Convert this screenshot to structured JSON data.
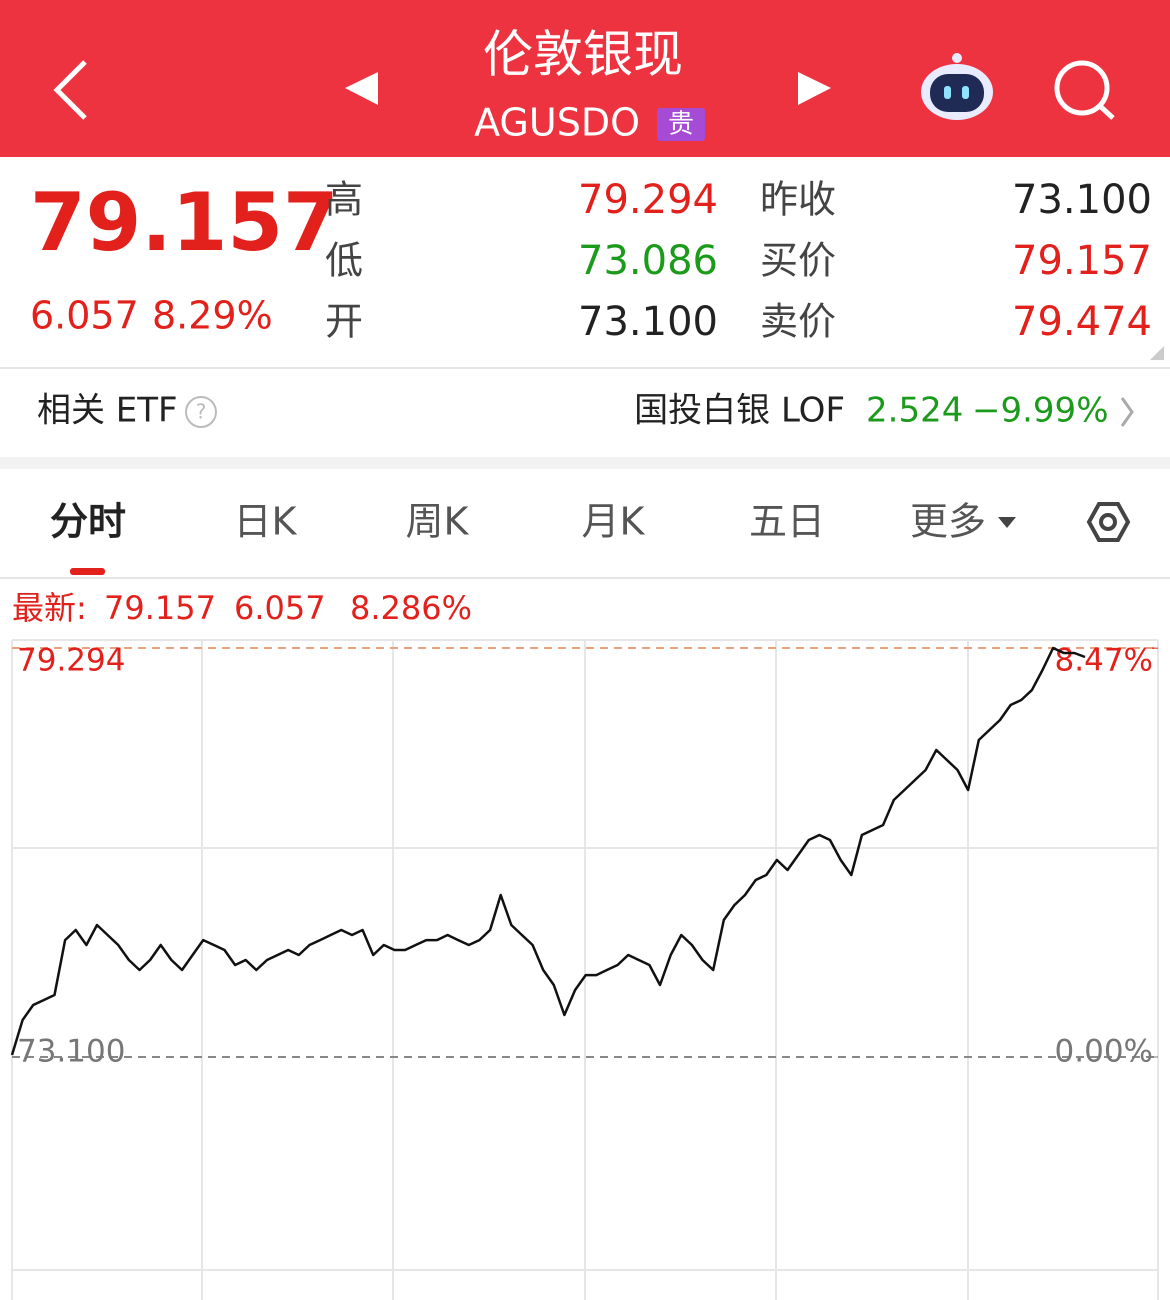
{
  "header": {
    "title": "伦敦银现",
    "code": "AGUSDO",
    "badge": "贵"
  },
  "quote": {
    "price": "79.157",
    "change": "6.057",
    "change_pct": "8.29%",
    "rows": [
      [
        {
          "label": "高",
          "value": "79.294"
        },
        {
          "label": "昨收",
          "value": "73.100"
        }
      ],
      [
        {
          "label": "低",
          "value": "73.086"
        },
        {
          "label": "买价",
          "value": "79.157"
        }
      ],
      [
        {
          "label": "开",
          "value": "73.100"
        },
        {
          "label": "卖价",
          "value": "79.474"
        }
      ]
    ]
  },
  "etf": {
    "label": "相关 ETF",
    "name": "国投白银 LOF",
    "price": "2.524",
    "change": "−9.99%"
  },
  "tabs": [
    "分时",
    "日K",
    "周K",
    "月K",
    "五日",
    "更多"
  ],
  "chart_info": {
    "label": "最新:",
    "price": "79.157",
    "change": "6.057",
    "change_pct": "8.286%"
  },
  "chart_data": {
    "type": "line",
    "color": "#111111",
    "ylim": [
      69.42,
      79.415
    ],
    "yticks": [
      {
        "value": 73.1,
        "label": "73.100"
      },
      79.294
    ],
    "y2lim": [
      -5.034,
      8.639
    ],
    "y2ticks": [
      {
        "value": 0,
        "label": "0.00%"
      },
      {
        "value": 8.47,
        "label": "8.47%"
      }
    ],
    "values": [
      73.13,
      73.66,
      73.887,
      73.963,
      74.039,
      74.871,
      75.023,
      74.796,
      75.099,
      74.947,
      74.796,
      74.569,
      74.417,
      74.569,
      74.796,
      74.569,
      74.417,
      74.644,
      74.871,
      74.796,
      74.72,
      74.493,
      74.569,
      74.417,
      74.569,
      74.644,
      74.72,
      74.644,
      74.796,
      74.871,
      74.947,
      75.023,
      74.947,
      75.023,
      74.644,
      74.796,
      74.72,
      74.72,
      74.796,
      74.871,
      74.871,
      74.947,
      74.871,
      74.796,
      74.871,
      75.023,
      75.553,
      75.099,
      74.947,
      74.796,
      74.417,
      74.19,
      73.736,
      74.114,
      74.341,
      74.341,
      74.417,
      74.493,
      74.644,
      74.569,
      74.493,
      74.19,
      74.644,
      74.947,
      74.796,
      74.569,
      74.417,
      75.174,
      75.401,
      75.553,
      75.78,
      75.856,
      76.083,
      75.932,
      76.159,
      76.386,
      76.462,
      76.386,
      76.083,
      75.856,
      76.462,
      76.538,
      76.613,
      76.992,
      77.143,
      77.295,
      77.446,
      77.749,
      77.598,
      77.446,
      77.143,
      77.9,
      78.052,
      78.203,
      78.43,
      78.506,
      78.657,
      78.96,
      79.294,
      79.218,
      79.218,
      79.157
    ]
  }
}
